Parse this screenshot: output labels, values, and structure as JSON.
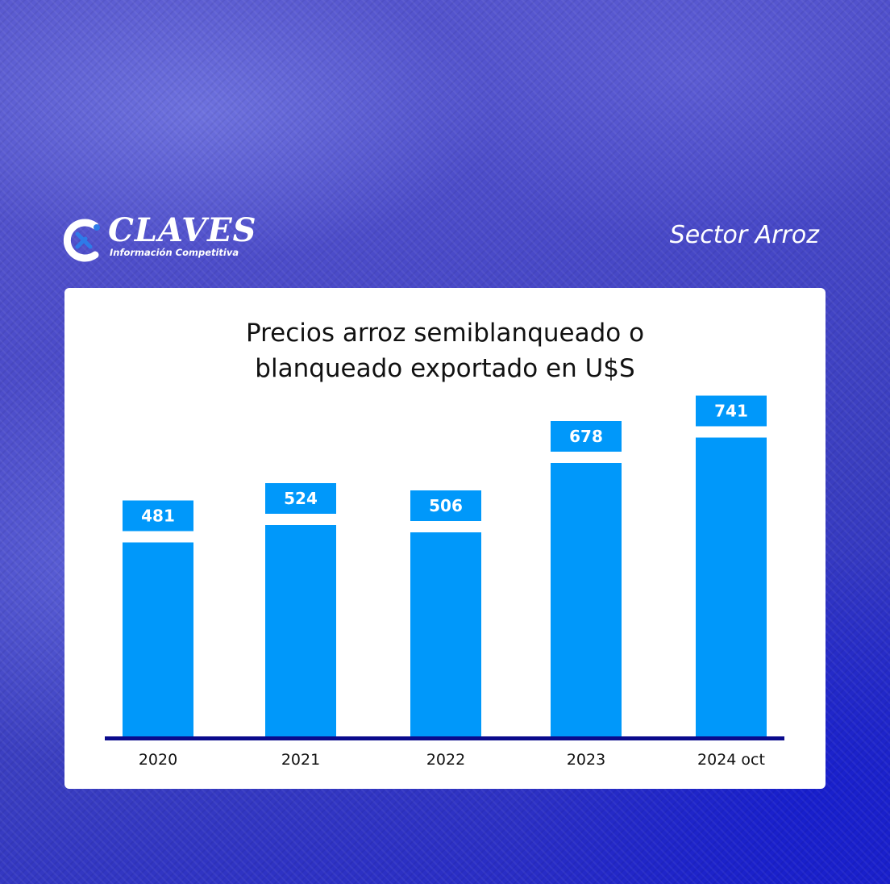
{
  "brand": {
    "name": "CLAVES",
    "tagline": "Información Competitiva"
  },
  "header": {
    "sector": "Sector Arroz"
  },
  "colors": {
    "bar": "#0098fa",
    "axis": "#0a0a8c",
    "label_text": "#ffffff",
    "card": "#ffffff"
  },
  "chart_data": {
    "type": "bar",
    "title_lines": [
      "Precios arroz semiblanqueado o",
      "blanqueado exportado en U$S"
    ],
    "categories": [
      "2020",
      "2021",
      "2022",
      "2023",
      "2024 oct"
    ],
    "values": [
      481,
      524,
      506,
      678,
      741
    ],
    "data_labels": [
      "481",
      "524",
      "506",
      "678",
      "741"
    ],
    "xlabel": "",
    "ylabel": "",
    "ylim": [
      0,
      800
    ],
    "grid": false,
    "legend": "none"
  }
}
